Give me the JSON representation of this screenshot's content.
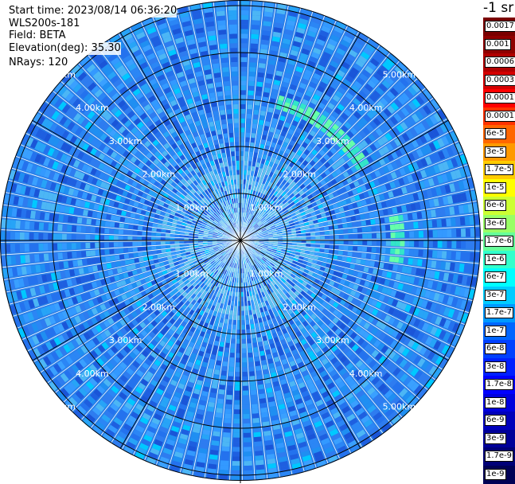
{
  "header": {
    "start_time": "Start time: 2023/08/14 06:36:20",
    "instrument": "WLS200s-181",
    "field": "Field: BETA",
    "elevation": "Elevation(deg): 35.30",
    "nrays": "NRays: 120"
  },
  "colorbar": {
    "unit_title": "-1 sr",
    "labels": [
      "0.0017",
      "0.001",
      "0.0006",
      "0.0003",
      "0.00017",
      "0.0001",
      "6e-5",
      "3e-5",
      "1.7e-5",
      "1e-5",
      "6e-6",
      "3e-6",
      "1.7e-6",
      "1e-6",
      "6e-7",
      "3e-7",
      "1.7e-7",
      "1e-7",
      "6e-8",
      "3e-8",
      "1.7e-8",
      "1e-8",
      "6e-9",
      "3e-9",
      "1.7e-9",
      "1e-9"
    ],
    "colors": [
      "#7a0000",
      "#8f0000",
      "#b00000",
      "#d40000",
      "#ff0000",
      "#ff3300",
      "#ff6600",
      "#ff9900",
      "#ffcc00",
      "#ffff00",
      "#ccff33",
      "#99ff66",
      "#66ff99",
      "#33ffcc",
      "#00ffff",
      "#00ccff",
      "#0099ff",
      "#0066ff",
      "#0040ff",
      "#0020ff",
      "#0000ff",
      "#0000dd",
      "#0000bb",
      "#000099",
      "#000077",
      "#000055"
    ]
  },
  "chart_data": {
    "type": "ppi_polar",
    "range_rings_km": [
      1,
      2,
      3,
      4,
      5
    ],
    "range_labels": [
      "1.00km",
      "2.00km",
      "3.00km",
      "4.00km",
      "5.00km"
    ],
    "max_range_km": 5.3,
    "nrays": 120,
    "azimuth_spokes_deg": [
      0,
      30,
      60,
      90,
      120,
      150,
      180,
      210,
      240,
      270,
      300,
      330
    ],
    "background_color": "#2a7fe8",
    "features": [
      {
        "description": "aerosol arc",
        "az_deg_from": 15,
        "az_deg_to": 60,
        "range_km": 3.0
      },
      {
        "description": "aerosol arc",
        "az_deg_from": 80,
        "az_deg_to": 100,
        "range_km": 3.3
      },
      {
        "description": "near-field speckle",
        "range_km_from": 0.3,
        "range_km_to": 1.6
      }
    ]
  }
}
